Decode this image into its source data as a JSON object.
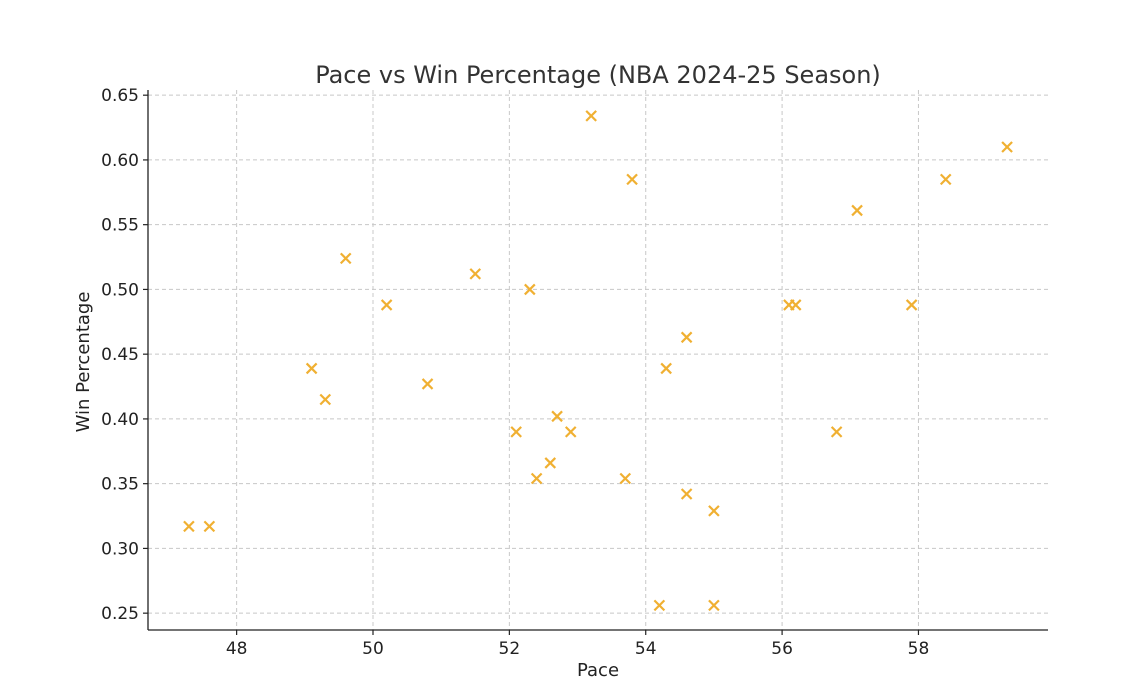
{
  "chart_data": {
    "type": "scatter",
    "title": "Pace vs Win Percentage (NBA 2024-25 Season)",
    "xlabel": "Pace",
    "ylabel": "Win Percentage",
    "xlim": [
      46.7,
      59.9
    ],
    "ylim": [
      0.237,
      0.654
    ],
    "xticks": [
      48,
      50,
      52,
      54,
      56,
      58
    ],
    "yticks": [
      0.25,
      0.3,
      0.35,
      0.4,
      0.45,
      0.5,
      0.55,
      0.6,
      0.65
    ],
    "ytick_labels": [
      "0.25",
      "0.30",
      "0.35",
      "0.40",
      "0.45",
      "0.50",
      "0.55",
      "0.60",
      "0.65"
    ],
    "grid": true,
    "marker": "x",
    "color": "#f0b032",
    "series": [
      {
        "points": [
          {
            "x": 47.3,
            "y": 0.317
          },
          {
            "x": 47.6,
            "y": 0.317
          },
          {
            "x": 49.1,
            "y": 0.439
          },
          {
            "x": 49.3,
            "y": 0.415
          },
          {
            "x": 49.6,
            "y": 0.524
          },
          {
            "x": 50.2,
            "y": 0.488
          },
          {
            "x": 50.8,
            "y": 0.427
          },
          {
            "x": 51.5,
            "y": 0.512
          },
          {
            "x": 52.1,
            "y": 0.39
          },
          {
            "x": 52.3,
            "y": 0.5
          },
          {
            "x": 52.4,
            "y": 0.354
          },
          {
            "x": 52.6,
            "y": 0.366
          },
          {
            "x": 52.7,
            "y": 0.402
          },
          {
            "x": 52.9,
            "y": 0.39
          },
          {
            "x": 53.2,
            "y": 0.634
          },
          {
            "x": 53.7,
            "y": 0.354
          },
          {
            "x": 53.8,
            "y": 0.585
          },
          {
            "x": 54.2,
            "y": 0.256
          },
          {
            "x": 54.3,
            "y": 0.439
          },
          {
            "x": 54.6,
            "y": 0.463
          },
          {
            "x": 54.6,
            "y": 0.342
          },
          {
            "x": 55.0,
            "y": 0.329
          },
          {
            "x": 55.0,
            "y": 0.256
          },
          {
            "x": 56.1,
            "y": 0.488
          },
          {
            "x": 56.2,
            "y": 0.488
          },
          {
            "x": 56.8,
            "y": 0.39
          },
          {
            "x": 57.1,
            "y": 0.561
          },
          {
            "x": 57.9,
            "y": 0.488
          },
          {
            "x": 58.4,
            "y": 0.585
          },
          {
            "x": 59.3,
            "y": 0.61
          }
        ]
      }
    ]
  }
}
